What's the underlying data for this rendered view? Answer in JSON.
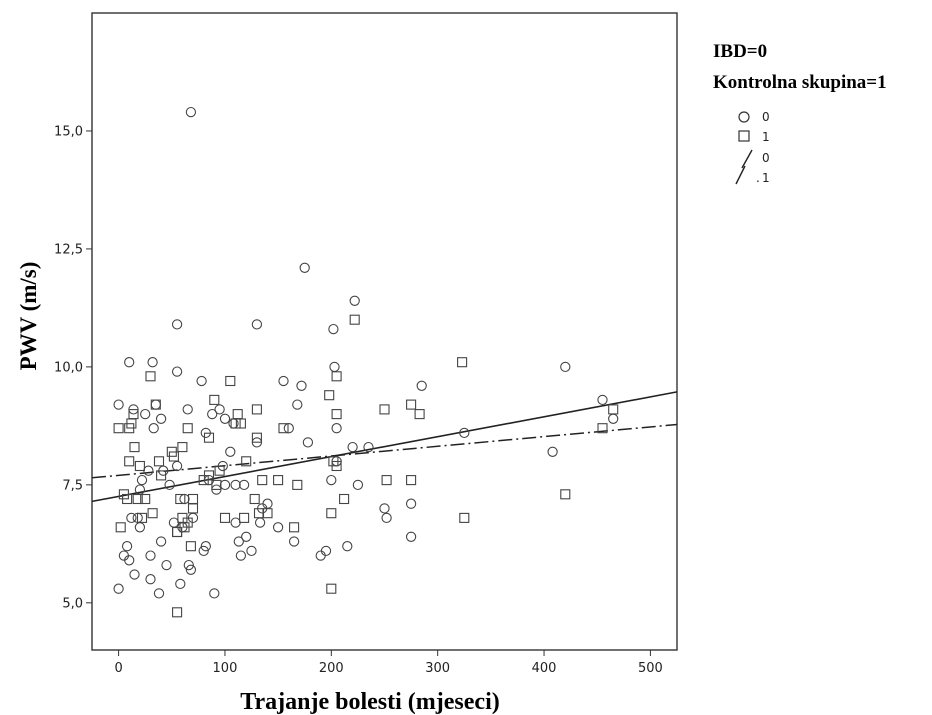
{
  "chart_data": {
    "type": "scatter",
    "title": "",
    "xlabel": "Trajanje bolesti (mjeseci)",
    "ylabel": "PWV (m/s)",
    "xlim": [
      -25,
      525
    ],
    "ylim": [
      4.0,
      17.5
    ],
    "xticks": [
      0,
      100,
      200,
      300,
      400,
      500
    ],
    "yticks": [
      5.0,
      7.5,
      10.0,
      12.5,
      15.0
    ],
    "xtick_labels": [
      "0",
      "100",
      "200",
      "300",
      "400",
      "500"
    ],
    "ytick_labels": [
      "5,0",
      "7,5",
      "10,0",
      "12,5",
      "15,0"
    ],
    "grid": false,
    "legend": {
      "position": "right",
      "title_lines": [
        "IBD=0",
        "Kontrolna skupina=1"
      ],
      "marker_labels": [
        "0",
        "1"
      ],
      "line_labels": [
        "0",
        "1"
      ]
    },
    "series": [
      {
        "name": "0",
        "marker": "circle",
        "points": [
          [
            0,
            5.3
          ],
          [
            0,
            9.2
          ],
          [
            5,
            6.0
          ],
          [
            8,
            6.2
          ],
          [
            10,
            5.9
          ],
          [
            10,
            10.1
          ],
          [
            12,
            6.8
          ],
          [
            14,
            9.1
          ],
          [
            15,
            5.6
          ],
          [
            18,
            6.8
          ],
          [
            20,
            6.6
          ],
          [
            20,
            7.4
          ],
          [
            22,
            7.6
          ],
          [
            25,
            9.0
          ],
          [
            28,
            7.8
          ],
          [
            30,
            6.0
          ],
          [
            30,
            5.5
          ],
          [
            32,
            10.1
          ],
          [
            33,
            8.7
          ],
          [
            35,
            9.2
          ],
          [
            38,
            5.2
          ],
          [
            40,
            8.9
          ],
          [
            40,
            6.3
          ],
          [
            42,
            7.8
          ],
          [
            45,
            5.8
          ],
          [
            48,
            7.5
          ],
          [
            52,
            6.7
          ],
          [
            55,
            10.9
          ],
          [
            55,
            9.9
          ],
          [
            55,
            7.9
          ],
          [
            58,
            5.4
          ],
          [
            60,
            6.6
          ],
          [
            62,
            7.2
          ],
          [
            65,
            9.1
          ],
          [
            66,
            5.8
          ],
          [
            68,
            5.7
          ],
          [
            68,
            15.4
          ],
          [
            70,
            6.8
          ],
          [
            78,
            9.7
          ],
          [
            80,
            6.1
          ],
          [
            82,
            8.6
          ],
          [
            82,
            6.2
          ],
          [
            85,
            7.6
          ],
          [
            88,
            9.0
          ],
          [
            90,
            5.2
          ],
          [
            92,
            7.4
          ],
          [
            95,
            9.1
          ],
          [
            98,
            7.9
          ],
          [
            100,
            8.9
          ],
          [
            100,
            7.5
          ],
          [
            105,
            8.2
          ],
          [
            108,
            8.8
          ],
          [
            110,
            6.7
          ],
          [
            110,
            7.5
          ],
          [
            113,
            6.3
          ],
          [
            115,
            6.0
          ],
          [
            118,
            7.5
          ],
          [
            120,
            6.4
          ],
          [
            125,
            6.1
          ],
          [
            130,
            8.4
          ],
          [
            130,
            10.9
          ],
          [
            133,
            6.7
          ],
          [
            135,
            7.0
          ],
          [
            140,
            7.1
          ],
          [
            150,
            6.6
          ],
          [
            155,
            9.7
          ],
          [
            160,
            8.7
          ],
          [
            165,
            6.3
          ],
          [
            168,
            9.2
          ],
          [
            172,
            9.6
          ],
          [
            175,
            12.1
          ],
          [
            178,
            8.4
          ],
          [
            190,
            6.0
          ],
          [
            195,
            6.1
          ],
          [
            200,
            7.6
          ],
          [
            202,
            10.8
          ],
          [
            203,
            10.0
          ],
          [
            205,
            8.7
          ],
          [
            205,
            8.0
          ],
          [
            215,
            6.2
          ],
          [
            220,
            8.3
          ],
          [
            222,
            11.4
          ],
          [
            225,
            7.5
          ],
          [
            235,
            8.3
          ],
          [
            250,
            7.0
          ],
          [
            252,
            6.8
          ],
          [
            275,
            7.1
          ],
          [
            275,
            6.4
          ],
          [
            285,
            9.6
          ],
          [
            325,
            8.6
          ],
          [
            408,
            8.2
          ],
          [
            420,
            10.0
          ],
          [
            455,
            9.3
          ],
          [
            465,
            8.9
          ]
        ]
      },
      {
        "name": "1",
        "marker": "square",
        "points": [
          [
            0,
            8.7
          ],
          [
            2,
            6.6
          ],
          [
            5,
            7.3
          ],
          [
            8,
            7.2
          ],
          [
            10,
            8.0
          ],
          [
            10,
            8.7
          ],
          [
            12,
            8.8
          ],
          [
            14,
            9.0
          ],
          [
            15,
            8.3
          ],
          [
            18,
            7.2
          ],
          [
            20,
            7.9
          ],
          [
            22,
            6.8
          ],
          [
            25,
            7.2
          ],
          [
            30,
            9.8
          ],
          [
            32,
            6.9
          ],
          [
            35,
            9.2
          ],
          [
            38,
            8.0
          ],
          [
            40,
            7.7
          ],
          [
            50,
            8.2
          ],
          [
            52,
            8.1
          ],
          [
            55,
            6.5
          ],
          [
            55,
            6.5
          ],
          [
            55,
            4.8
          ],
          [
            58,
            7.2
          ],
          [
            60,
            6.8
          ],
          [
            60,
            8.3
          ],
          [
            62,
            6.6
          ],
          [
            65,
            8.7
          ],
          [
            65,
            6.7
          ],
          [
            68,
            6.2
          ],
          [
            70,
            7.0
          ],
          [
            70,
            7.2
          ],
          [
            80,
            7.6
          ],
          [
            85,
            8.5
          ],
          [
            85,
            7.7
          ],
          [
            90,
            9.3
          ],
          [
            92,
            7.5
          ],
          [
            95,
            7.8
          ],
          [
            100,
            6.8
          ],
          [
            105,
            9.7
          ],
          [
            110,
            8.8
          ],
          [
            112,
            9.0
          ],
          [
            115,
            8.8
          ],
          [
            118,
            6.8
          ],
          [
            120,
            8.0
          ],
          [
            128,
            7.2
          ],
          [
            130,
            9.1
          ],
          [
            130,
            8.5
          ],
          [
            132,
            6.9
          ],
          [
            135,
            7.6
          ],
          [
            140,
            6.9
          ],
          [
            150,
            7.6
          ],
          [
            155,
            8.7
          ],
          [
            165,
            6.6
          ],
          [
            168,
            7.5
          ],
          [
            198,
            9.4
          ],
          [
            200,
            6.9
          ],
          [
            200,
            5.3
          ],
          [
            202,
            8.0
          ],
          [
            205,
            9.8
          ],
          [
            205,
            9.0
          ],
          [
            205,
            7.9
          ],
          [
            212,
            7.2
          ],
          [
            222,
            11.0
          ],
          [
            250,
            9.1
          ],
          [
            252,
            7.6
          ],
          [
            275,
            7.6
          ],
          [
            275,
            9.2
          ],
          [
            283,
            9.0
          ],
          [
            323,
            10.1
          ],
          [
            325,
            6.8
          ],
          [
            420,
            7.3
          ],
          [
            455,
            8.7
          ],
          [
            465,
            9.1
          ]
        ]
      }
    ],
    "fit_lines": [
      {
        "name": "0",
        "style": "solid",
        "from": [
          -25,
          7.15
        ],
        "to": [
          525,
          9.47
        ]
      },
      {
        "name": "1",
        "style": "dashdot",
        "from": [
          -25,
          7.65
        ],
        "to": [
          525,
          8.78
        ]
      }
    ]
  }
}
